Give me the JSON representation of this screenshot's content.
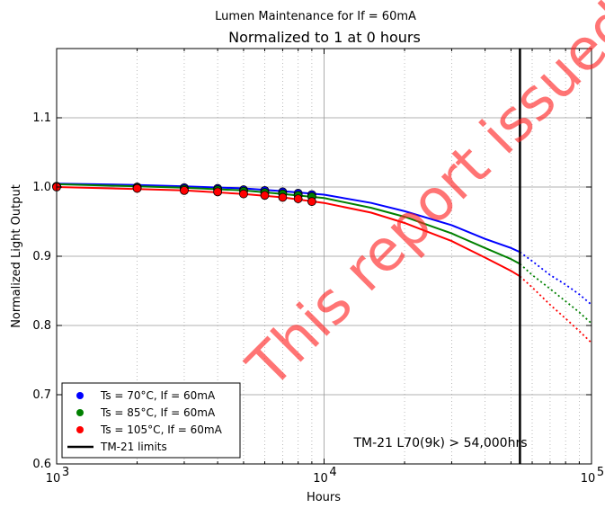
{
  "chart_data": {
    "type": "line",
    "title": "Lumen Maintenance for If = 60mA",
    "subtitle": "Normalized to 1 at 0 hours",
    "xlabel": "Hours",
    "ylabel": "Normalized Light Output",
    "xscale": "log",
    "xlim": [
      1000,
      100000
    ],
    "ylim": [
      0.6,
      1.2
    ],
    "xticks": [
      {
        "value": 1000,
        "base": "10",
        "exp": "3"
      },
      {
        "value": 10000,
        "base": "10",
        "exp": "4"
      },
      {
        "value": 100000,
        "base": "10",
        "exp": "5"
      }
    ],
    "yticks": [
      {
        "value": 0.6,
        "label": "0.6"
      },
      {
        "value": 0.7,
        "label": "0.7"
      },
      {
        "value": 0.8,
        "label": "0.8"
      },
      {
        "value": 0.9,
        "label": "0.9"
      },
      {
        "value": 1.0,
        "label": "1.0"
      },
      {
        "value": 1.1,
        "label": "1.1"
      }
    ],
    "grid": true,
    "legend_position": "lower-left",
    "series": [
      {
        "name": "Ts = 70°C, If = 60mA",
        "color": "#0000ff",
        "points_x": [
          1000,
          2000,
          3000,
          4000,
          5000,
          6000,
          7000,
          8000,
          9000
        ],
        "points_y": [
          1.001,
          1.0,
          0.999,
          0.998,
          0.996,
          0.995,
          0.993,
          0.991,
          0.989
        ],
        "fit_x": [
          1000,
          2000,
          3000,
          5000,
          7000,
          10000,
          15000,
          20000,
          30000,
          40000,
          50000,
          54000
        ],
        "fit_y": [
          1.005,
          1.003,
          1.001,
          0.998,
          0.994,
          0.989,
          0.977,
          0.965,
          0.945,
          0.925,
          0.912,
          0.906
        ],
        "projection_x": [
          54000,
          60000,
          70000,
          80000,
          90000,
          100000
        ],
        "projection_y": [
          0.906,
          0.893,
          0.873,
          0.859,
          0.845,
          0.83
        ]
      },
      {
        "name": "Ts = 85°C, If = 60mA",
        "color": "#008000",
        "points_x": [
          1000,
          2000,
          3000,
          4000,
          5000,
          6000,
          7000,
          8000,
          9000
        ],
        "points_y": [
          1.001,
          0.999,
          0.997,
          0.996,
          0.994,
          0.992,
          0.99,
          0.988,
          0.986
        ],
        "fit_x": [
          1000,
          2000,
          3000,
          5000,
          7000,
          10000,
          15000,
          20000,
          30000,
          40000,
          50000,
          54000
        ],
        "fit_y": [
          1.004,
          1.001,
          0.999,
          0.995,
          0.99,
          0.984,
          0.97,
          0.957,
          0.933,
          0.912,
          0.896,
          0.889
        ],
        "projection_x": [
          54000,
          60000,
          70000,
          80000,
          90000,
          100000
        ],
        "projection_y": [
          0.889,
          0.873,
          0.853,
          0.835,
          0.819,
          0.803
        ]
      },
      {
        "name": "Ts = 105°C, If = 60mA",
        "color": "#ff0000",
        "points_x": [
          1000,
          2000,
          3000,
          4000,
          5000,
          6000,
          7000,
          8000,
          9000
        ],
        "points_y": [
          1.0,
          0.998,
          0.995,
          0.993,
          0.99,
          0.988,
          0.985,
          0.983,
          0.979
        ],
        "fit_x": [
          1000,
          2000,
          3000,
          5000,
          7000,
          10000,
          15000,
          20000,
          30000,
          40000,
          50000,
          54000
        ],
        "fit_y": [
          1.0,
          0.997,
          0.995,
          0.99,
          0.985,
          0.977,
          0.963,
          0.948,
          0.922,
          0.898,
          0.879,
          0.871
        ],
        "projection_x": [
          54000,
          60000,
          70000,
          80000,
          90000,
          100000
        ],
        "projection_y": [
          0.871,
          0.855,
          0.83,
          0.81,
          0.792,
          0.775
        ]
      }
    ],
    "tm21_limit": {
      "name": "TM-21 limits",
      "x": 54000,
      "color": "#000000"
    },
    "annotation": "TM-21 L70(9k) > 54,000hrs",
    "watermark": "This report issued"
  }
}
